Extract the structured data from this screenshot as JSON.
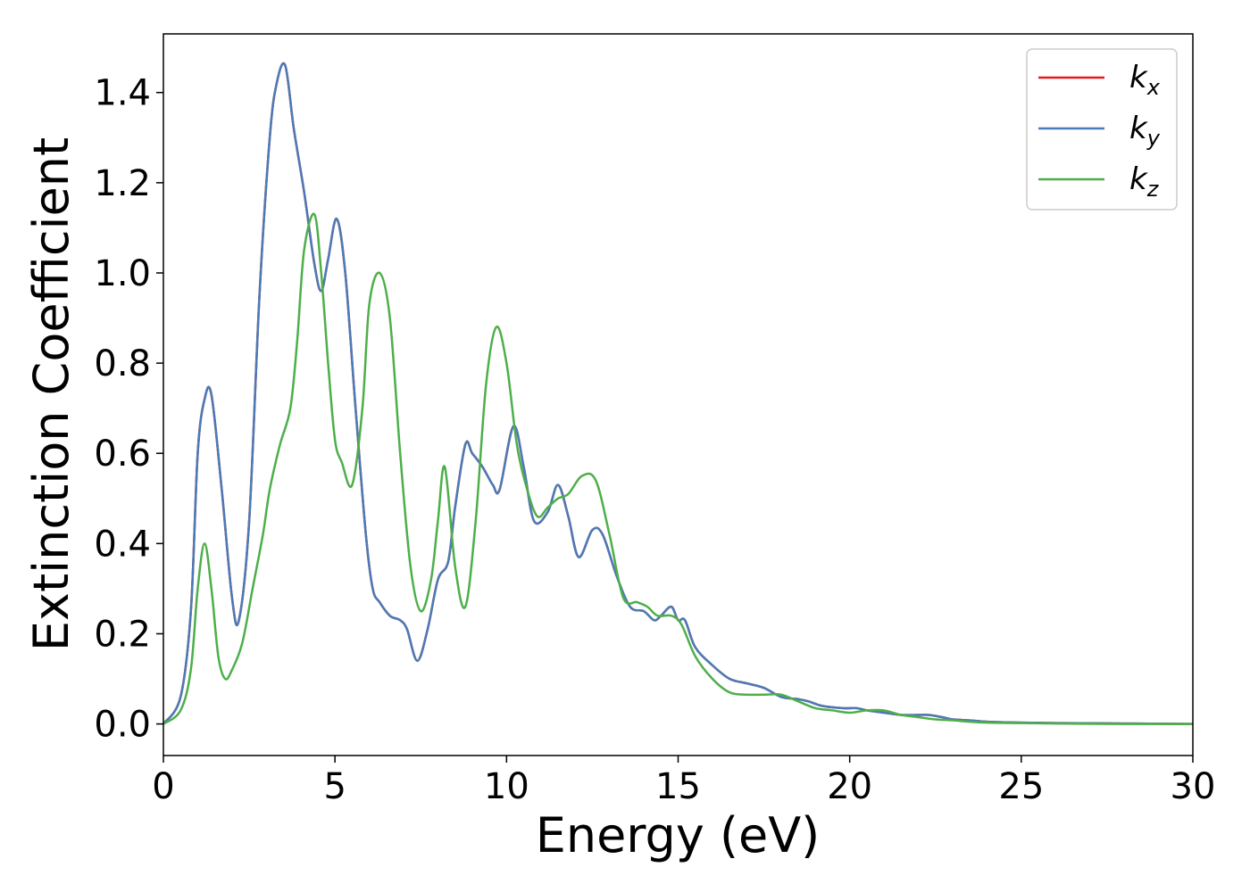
{
  "chart_data": {
    "type": "line",
    "xlabel": "Energy (eV)",
    "ylabel": "Extinction Coefficient",
    "xlim": [
      0,
      30
    ],
    "ylim": [
      -0.07,
      1.53
    ],
    "xticks": [
      0,
      5,
      10,
      15,
      20,
      25,
      30
    ],
    "xtick_labels": [
      "0",
      "5",
      "10",
      "15",
      "20",
      "25",
      "30"
    ],
    "yticks": [
      0.0,
      0.2,
      0.4,
      0.6,
      0.8,
      1.0,
      1.2,
      1.4
    ],
    "ytick_labels": [
      "0.0",
      "0.2",
      "0.4",
      "0.6",
      "0.8",
      "1.0",
      "1.2",
      "1.4"
    ],
    "grid": false,
    "legend_position": "top-right",
    "series": [
      {
        "name": "k_x",
        "label_main": "k",
        "label_sub": "x",
        "color": "#e41a1c",
        "x": [
          0,
          0.5,
          0.8,
          1.0,
          1.2,
          1.4,
          1.7,
          2.0,
          2.2,
          2.5,
          2.8,
          3.1,
          3.3,
          3.55,
          3.8,
          4.1,
          4.4,
          4.6,
          4.8,
          5.05,
          5.3,
          5.6,
          5.9,
          6.1,
          6.3,
          6.6,
          6.9,
          7.1,
          7.4,
          7.7,
          8.0,
          8.3,
          8.5,
          8.8,
          9.0,
          9.3,
          9.6,
          9.8,
          10.2,
          10.5,
          10.8,
          11.2,
          11.5,
          11.8,
          12.1,
          12.5,
          12.8,
          13.2,
          13.6,
          14.0,
          14.3,
          14.5,
          14.8,
          15.0,
          15.2,
          15.5,
          16.0,
          16.5,
          17.0,
          17.5,
          18.0,
          18.5,
          18.8,
          19.2,
          19.8,
          20.2,
          20.5,
          21.0,
          21.5,
          22.0,
          22.3,
          22.7,
          23.0,
          23.5,
          24.0,
          25.0,
          26.0,
          28.0,
          30.0
        ],
        "y": [
          0.0,
          0.06,
          0.25,
          0.6,
          0.72,
          0.73,
          0.52,
          0.28,
          0.23,
          0.45,
          0.95,
          1.3,
          1.42,
          1.46,
          1.32,
          1.18,
          1.02,
          0.96,
          1.03,
          1.12,
          1.0,
          0.7,
          0.42,
          0.3,
          0.27,
          0.24,
          0.23,
          0.21,
          0.14,
          0.21,
          0.32,
          0.36,
          0.48,
          0.62,
          0.6,
          0.57,
          0.53,
          0.52,
          0.66,
          0.57,
          0.45,
          0.47,
          0.53,
          0.46,
          0.37,
          0.43,
          0.42,
          0.33,
          0.26,
          0.25,
          0.23,
          0.24,
          0.26,
          0.23,
          0.23,
          0.17,
          0.13,
          0.1,
          0.09,
          0.08,
          0.06,
          0.055,
          0.05,
          0.04,
          0.035,
          0.035,
          0.03,
          0.025,
          0.02,
          0.02,
          0.02,
          0.015,
          0.01,
          0.008,
          0.005,
          0.003,
          0.002,
          0.001,
          0.0
        ]
      },
      {
        "name": "k_y",
        "label_main": "k",
        "label_sub": "y",
        "color": "#4a7bb7",
        "x": [
          0,
          0.5,
          0.8,
          1.0,
          1.2,
          1.4,
          1.7,
          2.0,
          2.2,
          2.5,
          2.8,
          3.1,
          3.3,
          3.55,
          3.8,
          4.1,
          4.4,
          4.6,
          4.8,
          5.05,
          5.3,
          5.6,
          5.9,
          6.1,
          6.3,
          6.6,
          6.9,
          7.1,
          7.4,
          7.7,
          8.0,
          8.3,
          8.5,
          8.8,
          9.0,
          9.3,
          9.6,
          9.8,
          10.2,
          10.5,
          10.8,
          11.2,
          11.5,
          11.8,
          12.1,
          12.5,
          12.8,
          13.2,
          13.6,
          14.0,
          14.3,
          14.5,
          14.8,
          15.0,
          15.2,
          15.5,
          16.0,
          16.5,
          17.0,
          17.5,
          18.0,
          18.5,
          18.8,
          19.2,
          19.8,
          20.2,
          20.5,
          21.0,
          21.5,
          22.0,
          22.3,
          22.7,
          23.0,
          23.5,
          24.0,
          25.0,
          26.0,
          28.0,
          30.0
        ],
        "y": [
          0.0,
          0.06,
          0.25,
          0.6,
          0.72,
          0.73,
          0.52,
          0.28,
          0.23,
          0.45,
          0.95,
          1.3,
          1.42,
          1.46,
          1.32,
          1.18,
          1.02,
          0.96,
          1.03,
          1.12,
          1.0,
          0.7,
          0.42,
          0.3,
          0.27,
          0.24,
          0.23,
          0.21,
          0.14,
          0.21,
          0.32,
          0.36,
          0.48,
          0.62,
          0.6,
          0.57,
          0.53,
          0.52,
          0.66,
          0.57,
          0.45,
          0.47,
          0.53,
          0.46,
          0.37,
          0.43,
          0.42,
          0.33,
          0.26,
          0.25,
          0.23,
          0.24,
          0.26,
          0.23,
          0.23,
          0.17,
          0.13,
          0.1,
          0.09,
          0.08,
          0.06,
          0.055,
          0.05,
          0.04,
          0.035,
          0.035,
          0.03,
          0.025,
          0.02,
          0.02,
          0.02,
          0.015,
          0.01,
          0.008,
          0.005,
          0.003,
          0.002,
          0.001,
          0.0
        ]
      },
      {
        "name": "k_z",
        "label_main": "k",
        "label_sub": "z",
        "color": "#4daf4a",
        "x": [
          0,
          0.5,
          0.8,
          1.0,
          1.2,
          1.4,
          1.6,
          1.8,
          2.0,
          2.3,
          2.6,
          2.9,
          3.1,
          3.4,
          3.7,
          3.9,
          4.1,
          4.4,
          4.6,
          4.8,
          5.0,
          5.2,
          5.5,
          5.8,
          6.0,
          6.3,
          6.6,
          6.9,
          7.2,
          7.5,
          7.8,
          8.0,
          8.2,
          8.5,
          8.8,
          9.1,
          9.4,
          9.7,
          10.0,
          10.3,
          10.6,
          10.9,
          11.2,
          11.5,
          11.8,
          12.2,
          12.6,
          13.0,
          13.4,
          13.8,
          14.1,
          14.4,
          14.8,
          15.1,
          15.5,
          16.0,
          16.5,
          17.0,
          17.5,
          18.0,
          18.5,
          19.0,
          19.5,
          20.0,
          20.5,
          21.0,
          21.5,
          22.0,
          22.5,
          23.0,
          23.5,
          24.0,
          25.0,
          26.0,
          28.0,
          30.0
        ],
        "y": [
          0.0,
          0.03,
          0.12,
          0.3,
          0.4,
          0.3,
          0.15,
          0.1,
          0.12,
          0.18,
          0.3,
          0.42,
          0.52,
          0.62,
          0.7,
          0.85,
          1.05,
          1.13,
          1.0,
          0.8,
          0.63,
          0.58,
          0.53,
          0.7,
          0.93,
          1.0,
          0.9,
          0.6,
          0.35,
          0.25,
          0.32,
          0.45,
          0.57,
          0.35,
          0.26,
          0.45,
          0.75,
          0.88,
          0.8,
          0.62,
          0.52,
          0.46,
          0.48,
          0.5,
          0.51,
          0.55,
          0.54,
          0.42,
          0.28,
          0.27,
          0.26,
          0.24,
          0.24,
          0.22,
          0.15,
          0.1,
          0.07,
          0.065,
          0.065,
          0.065,
          0.05,
          0.035,
          0.03,
          0.025,
          0.03,
          0.03,
          0.02,
          0.015,
          0.01,
          0.008,
          0.005,
          0.003,
          0.002,
          0.001,
          0.0,
          0.0
        ]
      }
    ]
  }
}
